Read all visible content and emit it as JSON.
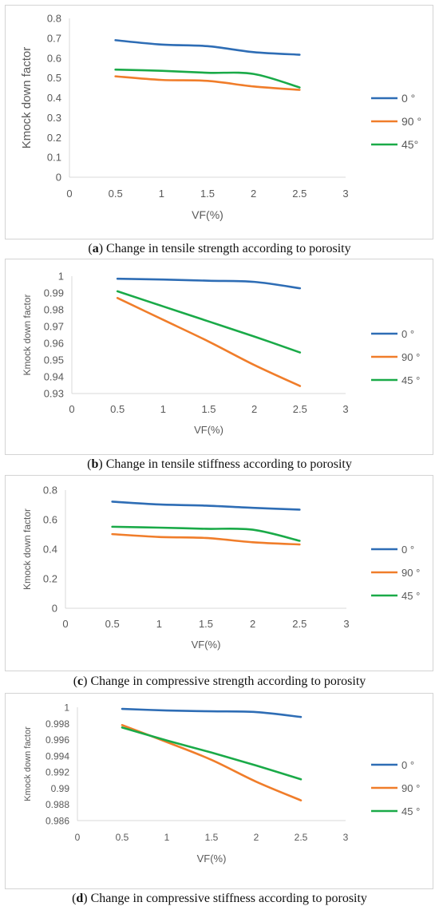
{
  "colors": {
    "0": "#2e6db5",
    "90": "#f07d2a",
    "45": "#1aaa48",
    "axis": "#d9d9d9"
  },
  "chart_data": [
    {
      "type": "line",
      "caption_letter": "a",
      "caption_text": " Change in tensile strength according to porosity",
      "xlabel": "VF(%)",
      "ylabel": "Kmock down factor",
      "xlim": [
        0,
        3
      ],
      "ylim": [
        0,
        0.8
      ],
      "x_ticks": [
        "0",
        "0.5",
        "1",
        "1.5",
        "2",
        "2.5",
        "3"
      ],
      "y_ticks": [
        "0",
        "0.1",
        "0.2",
        "0.3",
        "0.4",
        "0.5",
        "0.6",
        "0.7",
        "0.8"
      ],
      "legend_position": "right",
      "x": [
        0.5,
        1,
        1.5,
        2,
        2.5
      ],
      "series": [
        {
          "name": "0 °",
          "color_key": "0",
          "values": [
            0.69,
            0.668,
            0.66,
            0.63,
            0.617
          ]
        },
        {
          "name": "90 °",
          "color_key": "90",
          "values": [
            0.508,
            0.49,
            0.485,
            0.457,
            0.44
          ]
        },
        {
          "name": "45°",
          "color_key": "45",
          "values": [
            0.542,
            0.536,
            0.526,
            0.52,
            0.452
          ]
        }
      ]
    },
    {
      "type": "line",
      "caption_letter": "b",
      "caption_text": " Change in tensile stiffness according to porosity",
      "xlabel": "VF(%)",
      "ylabel": "Kmock down factor",
      "xlim": [
        0,
        3
      ],
      "ylim": [
        0.93,
        1
      ],
      "x_ticks": [
        "0",
        "0.5",
        "1",
        "1.5",
        "2",
        "2.5",
        "3"
      ],
      "y_ticks": [
        "0.93",
        "0.94",
        "0.95",
        "0.96",
        "0.97",
        "0.98",
        "0.99",
        "1"
      ],
      "legend_position": "right",
      "x": [
        0.5,
        1,
        1.5,
        2,
        2.5
      ],
      "series": [
        {
          "name": "0 °",
          "color_key": "0",
          "values": [
            0.9985,
            0.998,
            0.9973,
            0.9966,
            0.9928
          ]
        },
        {
          "name": "90 °",
          "color_key": "90",
          "values": [
            0.987,
            0.974,
            0.961,
            0.947,
            0.9345
          ]
        },
        {
          "name": "45 °",
          "color_key": "45",
          "values": [
            0.991,
            0.982,
            0.973,
            0.964,
            0.9545
          ]
        }
      ]
    },
    {
      "type": "line",
      "caption_letter": "c",
      "caption_text": " Change in compressive strength according to porosity",
      "xlabel": "VF(%)",
      "ylabel": "Kmock down factor",
      "xlim": [
        0,
        3
      ],
      "ylim": [
        0,
        0.8
      ],
      "x_ticks": [
        "0",
        "0.5",
        "1",
        "1.5",
        "2",
        "2.5",
        "3"
      ],
      "y_ticks": [
        "0",
        "0.2",
        "0.4",
        "0.6",
        "0.8"
      ],
      "legend_position": "right",
      "x": [
        0.5,
        1,
        1.5,
        2,
        2.5
      ],
      "series": [
        {
          "name": "0 °",
          "color_key": "0",
          "values": [
            0.722,
            0.703,
            0.695,
            0.68,
            0.668
          ]
        },
        {
          "name": "90 °",
          "color_key": "90",
          "values": [
            0.502,
            0.483,
            0.476,
            0.447,
            0.432
          ]
        },
        {
          "name": "45 °",
          "color_key": "45",
          "values": [
            0.552,
            0.546,
            0.538,
            0.532,
            0.457
          ]
        }
      ]
    },
    {
      "type": "line",
      "caption_letter": "d",
      "caption_text": " Change in compressive stiffness according to porosity",
      "xlabel": "VF(%)",
      "ylabel": "Kmock down factor",
      "xlim": [
        0,
        3
      ],
      "ylim": [
        0.986,
        1
      ],
      "x_ticks": [
        "0",
        "0.5",
        "1",
        "1.5",
        "2",
        "2.5",
        "3"
      ],
      "y_ticks": [
        "0.986",
        "0.988",
        "0.99",
        "0.992",
        "0.994",
        "0.996",
        "0.998",
        "1"
      ],
      "legend_position": "right",
      "x": [
        0.5,
        1,
        1.5,
        2,
        2.5
      ],
      "series": [
        {
          "name": "0 °",
          "color_key": "0",
          "values": [
            0.9998,
            0.9996,
            0.9995,
            0.9994,
            0.9988
          ]
        },
        {
          "name": "90 °",
          "color_key": "90",
          "values": [
            0.9978,
            0.9957,
            0.9935,
            0.9908,
            0.9885
          ]
        },
        {
          "name": "45 °",
          "color_key": "45",
          "values": [
            0.9975,
            0.9959,
            0.9944,
            0.9928,
            0.9911
          ]
        }
      ]
    }
  ]
}
